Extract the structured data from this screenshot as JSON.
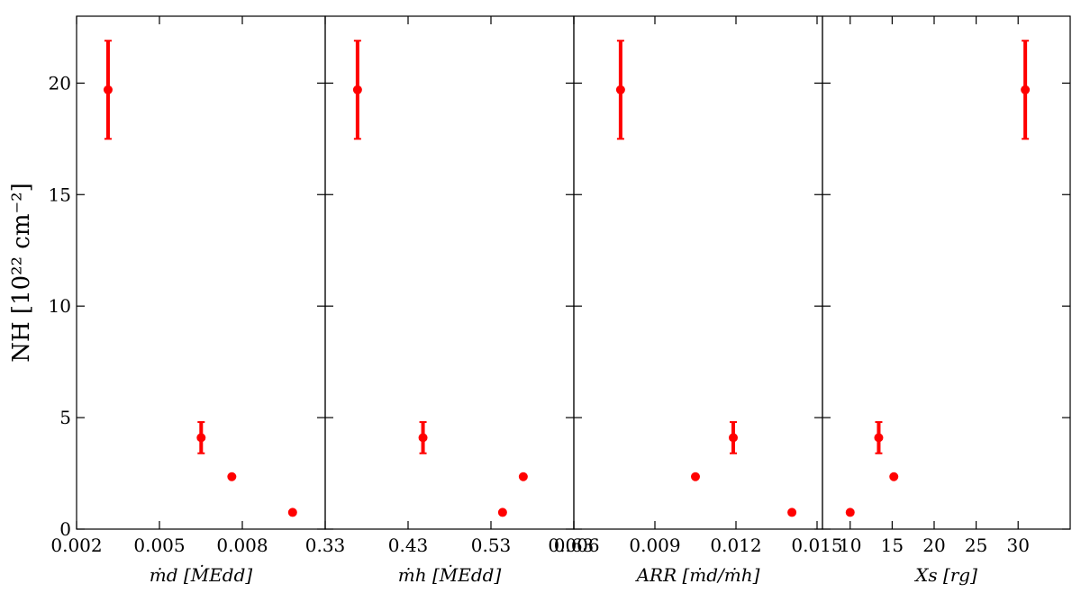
{
  "chart_data": [
    {
      "type": "scatter",
      "ylabel": "NH [10²² cm⁻²]",
      "xlabel": "ṁd [ṀEdd]",
      "color": "#ff0000",
      "x": [
        0.00314,
        0.00651,
        0.00762,
        0.00982
      ],
      "values": [
        19.7,
        4.1,
        2.35,
        0.75
      ],
      "errors": [
        2.2,
        0.7,
        null,
        null
      ],
      "xlim": [
        0.002,
        0.011
      ],
      "xticks": [
        0.002,
        0.005,
        0.008
      ],
      "ylim": [
        0,
        23
      ],
      "yticks": [
        0,
        5,
        10,
        15,
        20
      ]
    },
    {
      "type": "scatter",
      "xlabel": "ṁh [ṀEdd]",
      "color": "#ff0000",
      "x": [
        0.369,
        0.448,
        0.544,
        0.569
      ],
      "values": [
        19.7,
        4.1,
        0.75,
        2.35
      ],
      "errors": [
        2.2,
        0.7,
        null,
        null
      ],
      "xlim": [
        0.33,
        0.63
      ],
      "xticks": [
        0.33,
        0.43,
        0.53,
        0.63
      ],
      "ylim": [
        0,
        23
      ],
      "yticks": [
        0,
        5,
        10,
        15,
        20
      ]
    },
    {
      "type": "scatter",
      "xlabel": "ARR [ṁd/ṁh]",
      "color": "#ff0000",
      "x": [
        0.00773,
        0.0119,
        0.0105,
        0.01407
      ],
      "values": [
        19.7,
        4.1,
        2.35,
        0.75
      ],
      "errors": [
        2.2,
        0.7,
        null,
        null
      ],
      "xlim": [
        0.006,
        0.0152
      ],
      "xticks": [
        0.006,
        0.009,
        0.012,
        0.015
      ],
      "ylim": [
        0,
        23
      ],
      "yticks": [
        0,
        5,
        10,
        15,
        20
      ]
    },
    {
      "type": "scatter",
      "xlabel": "Xs [rg]",
      "color": "#ff0000",
      "x": [
        30.85,
        13.4,
        15.2,
        10.0
      ],
      "values": [
        19.7,
        4.1,
        2.35,
        0.75
      ],
      "errors": [
        2.2,
        0.7,
        null,
        null
      ],
      "xlim": [
        6.7,
        36.2
      ],
      "xticks": [
        10,
        15,
        20,
        25,
        30
      ],
      "ylim": [
        0,
        23
      ],
      "yticks": [
        0,
        5,
        10,
        15,
        20
      ]
    }
  ]
}
